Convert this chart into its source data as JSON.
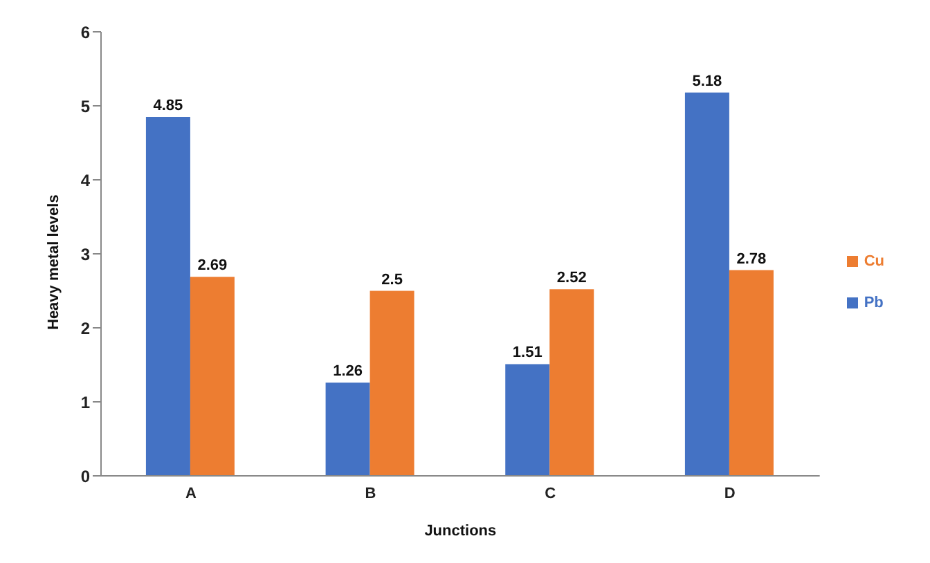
{
  "chart_data": {
    "type": "bar",
    "xlabel": "Junctions",
    "ylabel": "Heavy metal levels",
    "categories": [
      "A",
      "B",
      "C",
      "D"
    ],
    "series": [
      {
        "name": "Pb",
        "color": "#4472c4",
        "values": [
          4.85,
          1.26,
          1.51,
          5.18
        ]
      },
      {
        "name": "Cu",
        "color": "#ed7d31",
        "values": [
          2.69,
          2.5,
          2.52,
          2.78
        ]
      }
    ],
    "ylim": [
      0,
      6
    ],
    "yticks": [
      0,
      1,
      2,
      3,
      4,
      5,
      6
    ],
    "data_labels": true,
    "legend": "right",
    "grid": false
  }
}
